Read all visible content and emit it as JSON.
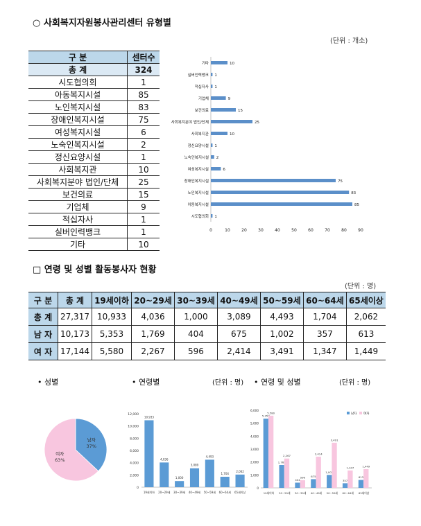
{
  "section1": {
    "title": "○  사회복지자원봉사관리센터 유형별",
    "unit": "(단위 : 개소)",
    "table": {
      "head": [
        "구    분",
        "센터수"
      ],
      "total": [
        "총    계",
        "324"
      ],
      "rows": [
        [
          "시도협의회",
          "1"
        ],
        [
          "아동복지시설",
          "85"
        ],
        [
          "노인복지시설",
          "83"
        ],
        [
          "장애인복지시설",
          "75"
        ],
        [
          "여성복지시설",
          "6"
        ],
        [
          "노숙인복지시설",
          "2"
        ],
        [
          "정신요양시설",
          "1"
        ],
        [
          "사회복지관",
          "10"
        ],
        [
          "사회복지분야 법인/단체",
          "25"
        ],
        [
          "보건의료",
          "15"
        ],
        [
          "기업체",
          "9"
        ],
        [
          "적십자사",
          "1"
        ],
        [
          "실버인력뱅크",
          "1"
        ],
        [
          "기타",
          "10"
        ]
      ]
    }
  },
  "section2": {
    "title": "□  연령 및 성별 활동봉사자 현황",
    "unit": "(단위 : 명)",
    "table": {
      "head": [
        "구 분",
        "총 계",
        "19세이하",
        "20~29세",
        "30~39세",
        "40~49세",
        "50~59세",
        "60~64세",
        "65세이상"
      ],
      "rows": [
        [
          "총 계",
          "27,317",
          "10,933",
          "4,036",
          "1,000",
          "3,089",
          "4,493",
          "1,704",
          "2,062"
        ],
        [
          "남 자",
          "10,173",
          "5,353",
          "1,769",
          "404",
          "675",
          "1,002",
          "357",
          "613"
        ],
        [
          "여 자",
          "17,144",
          "5,580",
          "2,267",
          "596",
          "2,414",
          "3,491",
          "1,347",
          "1,449"
        ]
      ]
    }
  },
  "captions": {
    "gender": "• 성별",
    "age": "• 연령별",
    "age_unit": "(단위 : 명)",
    "agegender": "• 연령 및 성별",
    "agegender_unit": "(단위 : 명)"
  },
  "chart_data": [
    {
      "type": "bar",
      "orientation": "horizontal",
      "categories": [
        "기타",
        "실버인력뱅크",
        "적십자사",
        "기업체",
        "보건의료",
        "사회복지분야 법인/단체",
        "사회복지관",
        "정신요양시설",
        "노숙인복지시설",
        "여성복지시설",
        "장애인복지시설",
        "노인복지시설",
        "아동복지시설",
        "시도협의회"
      ],
      "values": [
        10,
        1,
        1,
        9,
        15,
        25,
        10,
        1,
        2,
        6,
        75,
        83,
        85,
        1
      ],
      "xticks": [
        0,
        10,
        20,
        30,
        40,
        50,
        60,
        70,
        80,
        90
      ],
      "xlim": [
        0,
        90
      ],
      "color": "#5b8fc9"
    },
    {
      "type": "pie",
      "labels": [
        "남자",
        "여자"
      ],
      "values": [
        37,
        63
      ],
      "value_labels": [
        "37%",
        "63%"
      ],
      "colors": [
        "#5b9bd5",
        "#f8c6df"
      ]
    },
    {
      "type": "bar",
      "categories": [
        "19세이하",
        "20~29세",
        "30~39세",
        "40~49세",
        "50~59세",
        "60~64세",
        "65세이상"
      ],
      "values": [
        10933,
        4036,
        1000,
        3089,
        4493,
        1704,
        2062
      ],
      "value_labels": [
        "10,933",
        "4,036",
        "1,000",
        "3,089",
        "4,493",
        "1,704",
        "2,062"
      ],
      "yticks": [
        "0",
        "2,000",
        "4,000",
        "6,000",
        "8,000",
        "10,000",
        "12,000"
      ],
      "ylim": [
        0,
        12000
      ],
      "color": "#5b9bd5"
    },
    {
      "type": "bar",
      "categories": [
        "19세이하",
        "20~29세",
        "30~39세",
        "40~49세",
        "50~59세",
        "60~64세",
        "65세이상"
      ],
      "series": [
        {
          "name": "남자",
          "values": [
            5353,
            1769,
            404,
            675,
            1002,
            357,
            613
          ],
          "value_labels": [
            "5,353",
            "1,769",
            "404",
            "675",
            "1,002",
            "357",
            "613"
          ],
          "color": "#5b9bd5"
        },
        {
          "name": "여자",
          "values": [
            5580,
            2267,
            596,
            2414,
            3491,
            1347,
            1449
          ],
          "value_labels": [
            "5,580",
            "2,267",
            "596",
            "2,414",
            "3,491",
            "1,347",
            "1,449"
          ],
          "color": "#f8c6df"
        }
      ],
      "yticks": [
        "0",
        "1,000",
        "2,000",
        "3,000",
        "4,000",
        "5,000",
        "6,000"
      ],
      "ylim": [
        0,
        6000
      ],
      "legend": "top-right"
    }
  ]
}
